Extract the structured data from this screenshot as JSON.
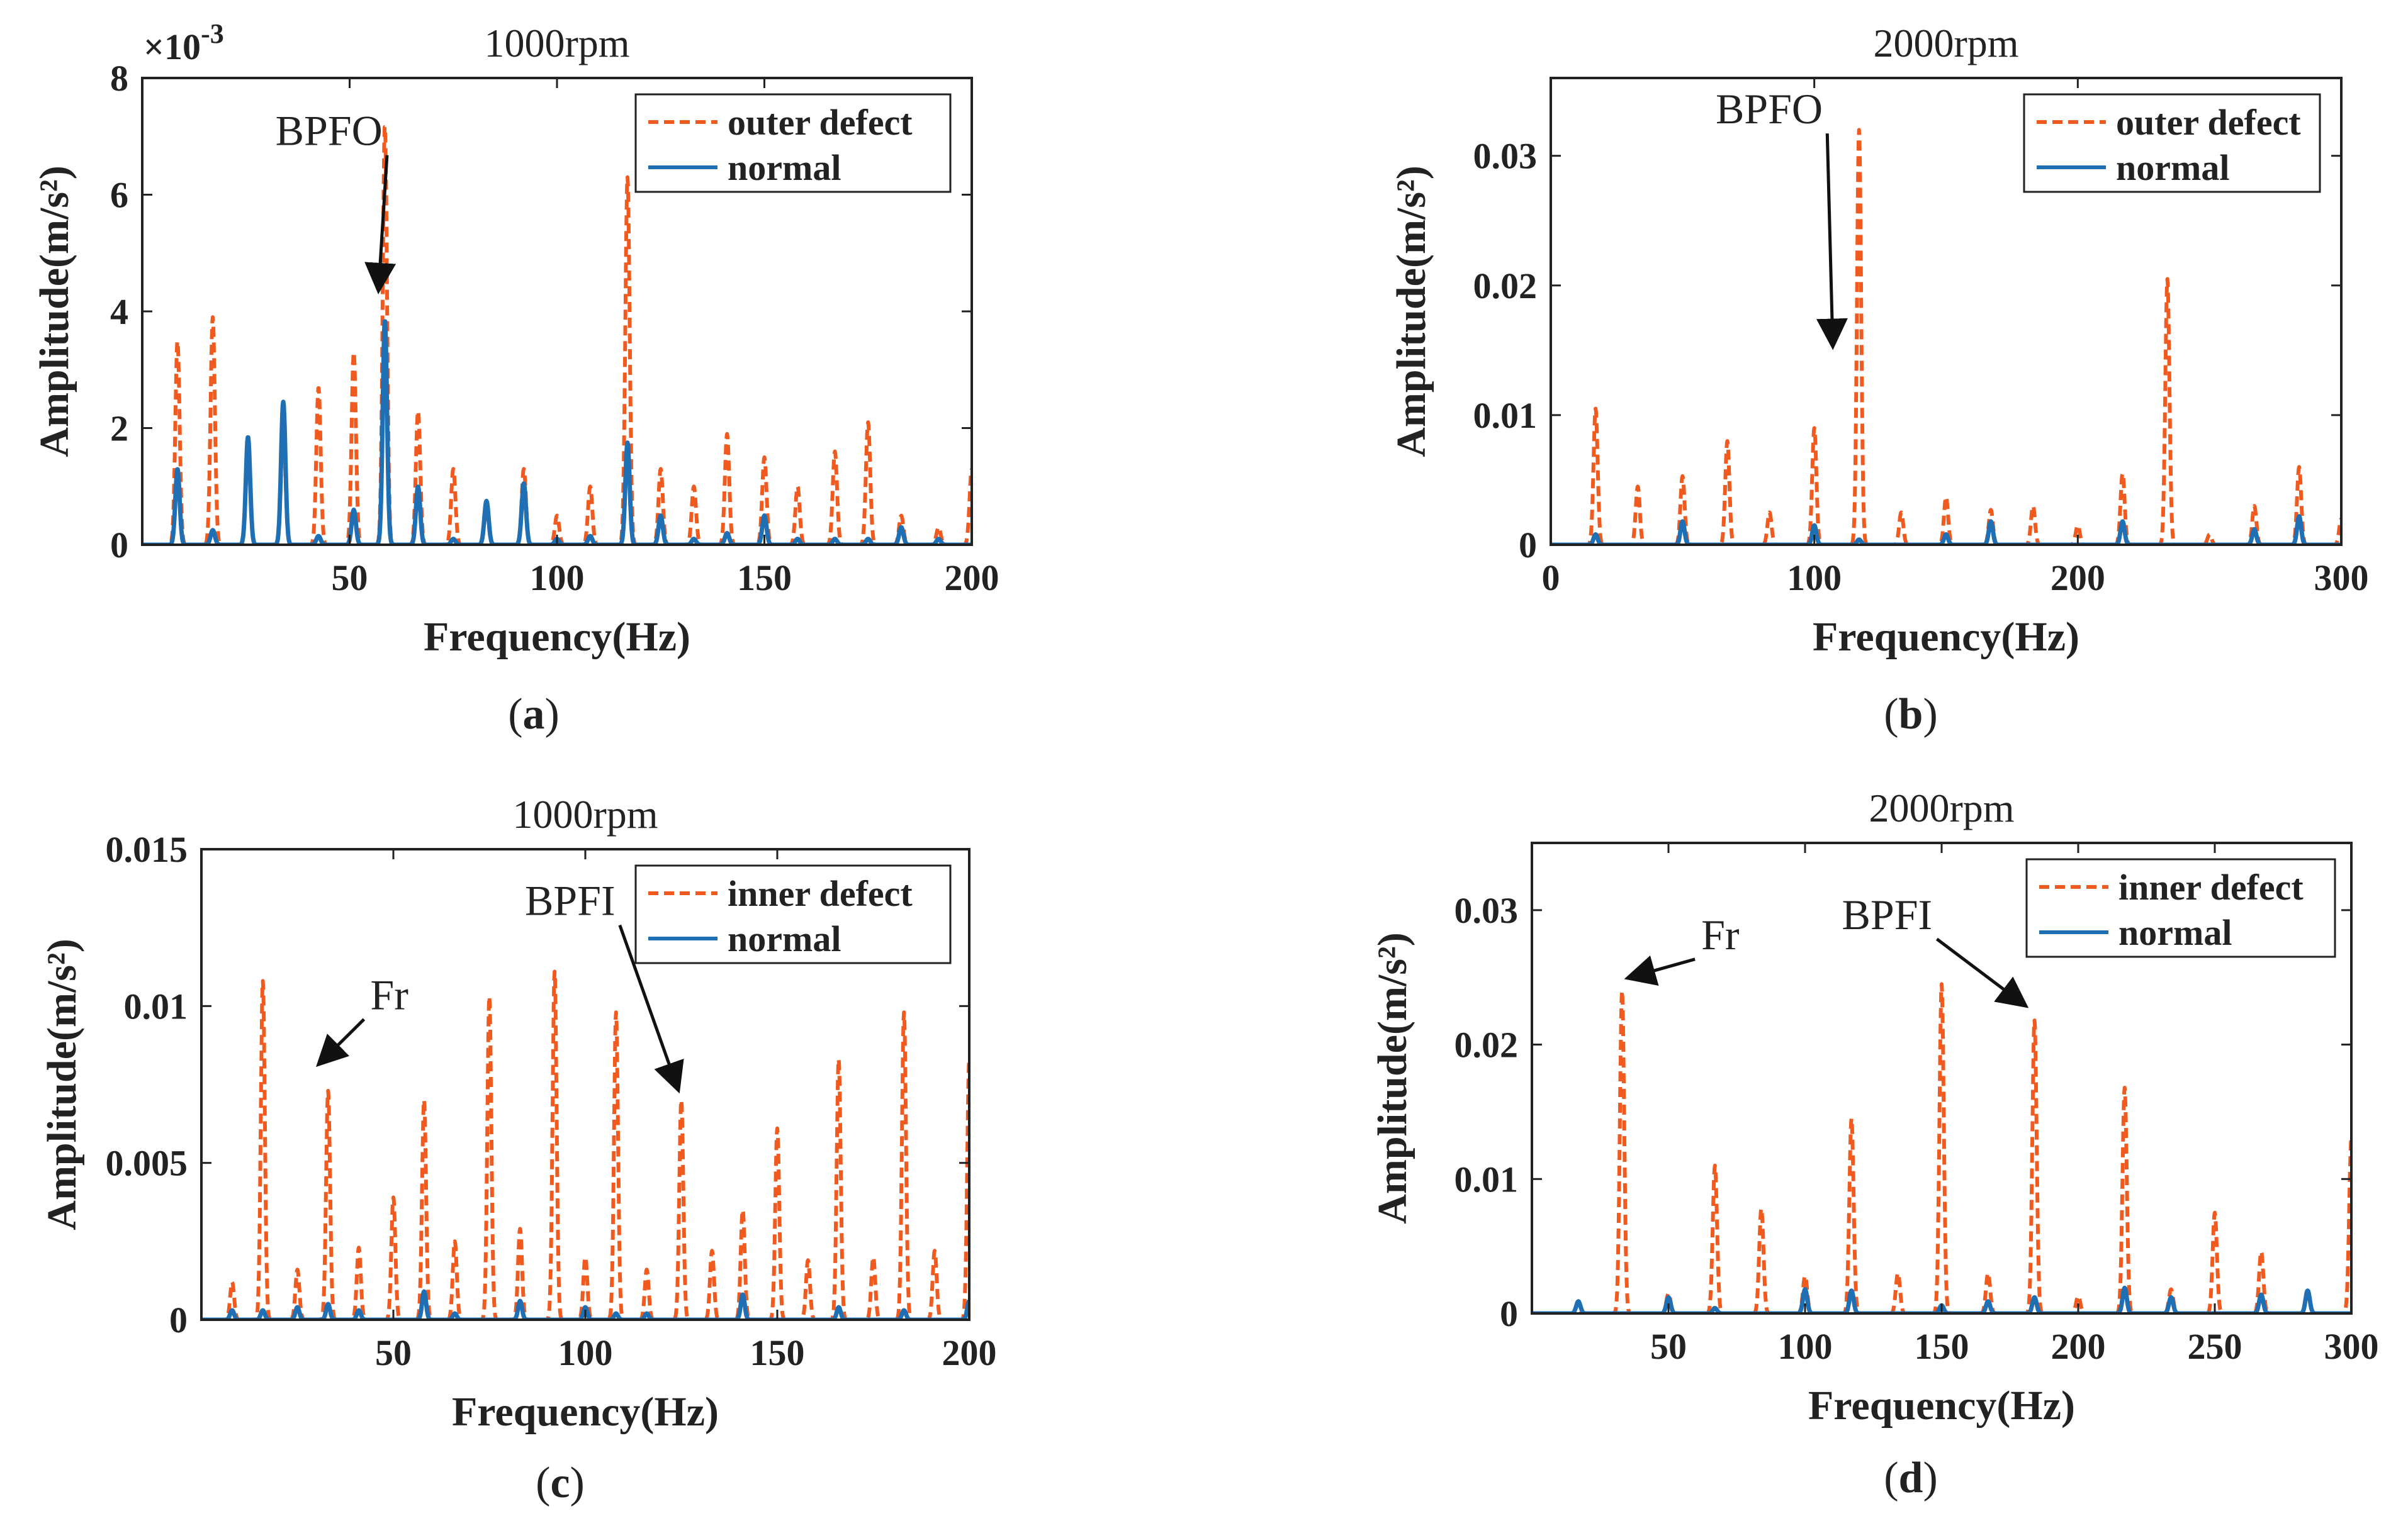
{
  "figure": {
    "colors": {
      "defect": "#f05a1e",
      "normal": "#1f6fb5",
      "axis": "#222222"
    }
  },
  "chart_data": [
    {
      "type": "line",
      "panel": "a",
      "caption_letter": "a",
      "title": "1000rpm",
      "xlabel": "Frequency(Hz)",
      "ylabel": "Amplitude(m/s²)",
      "y_exponent_text": "×10",
      "y_exponent_power": "-3",
      "xlim": [
        0,
        200
      ],
      "ylim": [
        0,
        8
      ],
      "xticks": [
        50,
        100,
        150,
        200
      ],
      "xtick_labels": [
        "50",
        "100",
        "150",
        "200"
      ],
      "yticks": [
        0,
        2,
        4,
        6,
        8
      ],
      "ytick_labels": [
        "0",
        "2",
        "4",
        "6",
        "8"
      ],
      "series": [
        {
          "name": "outer defect",
          "style": "dashed",
          "color": "#f05a1e",
          "peaks": [
            [
              8.5,
              3.5
            ],
            [
              17,
              3.9
            ],
            [
              25.5,
              1.7
            ],
            [
              34,
              2.0
            ],
            [
              42.5,
              2.7
            ],
            [
              51,
              3.3
            ],
            [
              58.5,
              7.2
            ],
            [
              66.5,
              2.3
            ],
            [
              75,
              1.3
            ],
            [
              83,
              0.6
            ],
            [
              92,
              1.3
            ],
            [
              100,
              0.5
            ],
            [
              108,
              1.0
            ],
            [
              117,
              6.3
            ],
            [
              125,
              1.3
            ],
            [
              133,
              1.0
            ],
            [
              141,
              1.9
            ],
            [
              150,
              1.5
            ],
            [
              158,
              1.0
            ],
            [
              167,
              1.6
            ],
            [
              175,
              2.1
            ],
            [
              183,
              0.5
            ],
            [
              192,
              0.3
            ],
            [
              200,
              1.3
            ]
          ]
        },
        {
          "name": "normal",
          "style": "solid",
          "color": "#1f6fb5",
          "peaks": [
            [
              8.5,
              1.3
            ],
            [
              17,
              0.25
            ],
            [
              25.5,
              1.85
            ],
            [
              34,
              2.45
            ],
            [
              42.5,
              0.15
            ],
            [
              51,
              0.6
            ],
            [
              58.5,
              3.85
            ],
            [
              66.5,
              1.0
            ],
            [
              75,
              0.1
            ],
            [
              83,
              0.75
            ],
            [
              92,
              1.05
            ],
            [
              100,
              0.1
            ],
            [
              108,
              0.15
            ],
            [
              117,
              1.75
            ],
            [
              125,
              0.5
            ],
            [
              133,
              0.1
            ],
            [
              141,
              0.2
            ],
            [
              150,
              0.5
            ],
            [
              158,
              0.1
            ],
            [
              167,
              0.1
            ],
            [
              175,
              0.1
            ],
            [
              183,
              0.3
            ],
            [
              192,
              0.1
            ]
          ]
        }
      ],
      "legend": {
        "position": "top-right",
        "entries": [
          "outer defect",
          "normal"
        ]
      },
      "annotations": [
        {
          "text": "BPFO",
          "x": 47,
          "y": 6.85,
          "arrow_to_x": 57,
          "arrow_to_y": 4.4
        }
      ]
    },
    {
      "type": "line",
      "panel": "b",
      "caption_letter": "b",
      "title": "2000rpm",
      "xlabel": "Frequency(Hz)",
      "ylabel": "Amplitude(m/s²)",
      "xlim": [
        0,
        300
      ],
      "ylim": [
        0,
        0.036
      ],
      "xticks": [
        0,
        100,
        200,
        300
      ],
      "xtick_labels": [
        "0",
        "100",
        "200",
        "300"
      ],
      "yticks": [
        0,
        0.01,
        0.02,
        0.03
      ],
      "ytick_labels": [
        "0",
        "0.01",
        "0.02",
        "0.03"
      ],
      "series": [
        {
          "name": "outer defect",
          "style": "dashed",
          "color": "#f05a1e",
          "peaks": [
            [
              17,
              0.0105
            ],
            [
              33,
              0.0045
            ],
            [
              50,
              0.0053
            ],
            [
              67,
              0.008
            ],
            [
              83,
              0.0025
            ],
            [
              100,
              0.009
            ],
            [
              117,
              0.032
            ],
            [
              133,
              0.0025
            ],
            [
              150,
              0.0037
            ],
            [
              167,
              0.0027
            ],
            [
              183,
              0.003
            ],
            [
              200,
              0.0015
            ],
            [
              217,
              0.0055
            ],
            [
              234,
              0.0205
            ],
            [
              250,
              0.0008
            ],
            [
              267,
              0.003
            ],
            [
              284,
              0.006
            ],
            [
              300,
              0.002
            ]
          ]
        },
        {
          "name": "normal",
          "style": "solid",
          "color": "#1f6fb5",
          "peaks": [
            [
              17,
              0.0008
            ],
            [
              50,
              0.0018
            ],
            [
              100,
              0.0015
            ],
            [
              117,
              0.0004
            ],
            [
              150,
              0.0008
            ],
            [
              167,
              0.0018
            ],
            [
              217,
              0.0018
            ],
            [
              267,
              0.0012
            ],
            [
              284,
              0.0022
            ]
          ]
        }
      ],
      "legend": {
        "position": "top-right",
        "entries": [
          "outer defect",
          "normal"
        ]
      },
      "annotations": [
        {
          "text": "BPFO",
          "x": 86,
          "y": 0.0325,
          "arrow_to_x": 107,
          "arrow_to_y": 0.0155
        }
      ]
    },
    {
      "type": "line",
      "panel": "c",
      "caption_letter": "c",
      "title": "1000rpm",
      "xlabel": "Frequency(Hz)",
      "ylabel": "Amplitude(m/s²)",
      "xlim": [
        0,
        200
      ],
      "ylim": [
        0,
        0.015
      ],
      "xticks": [
        50,
        100,
        150,
        200
      ],
      "xtick_labels": [
        "50",
        "100",
        "150",
        "200"
      ],
      "yticks": [
        0,
        0.005,
        0.01,
        0.015
      ],
      "ytick_labels": [
        "0",
        "0.005",
        "0.01",
        "0.015"
      ],
      "series": [
        {
          "name": "inner defect",
          "style": "dashed",
          "color": "#f05a1e",
          "peaks": [
            [
              8,
              0.0012
            ],
            [
              16,
              0.0108
            ],
            [
              25,
              0.0016
            ],
            [
              33,
              0.0073
            ],
            [
              41,
              0.0023
            ],
            [
              50,
              0.0039
            ],
            [
              58,
              0.007
            ],
            [
              66,
              0.0025
            ],
            [
              75,
              0.0103
            ],
            [
              83,
              0.0029
            ],
            [
              92,
              0.0111
            ],
            [
              100,
              0.002
            ],
            [
              108,
              0.0098
            ],
            [
              116,
              0.0016
            ],
            [
              125,
              0.007
            ],
            [
              133,
              0.0022
            ],
            [
              141,
              0.0035
            ],
            [
              150,
              0.0061
            ],
            [
              158,
              0.0019
            ],
            [
              166,
              0.0083
            ],
            [
              175,
              0.002
            ],
            [
              183,
              0.0098
            ],
            [
              191,
              0.0022
            ],
            [
              200,
              0.0083
            ]
          ]
        },
        {
          "name": "normal",
          "style": "solid",
          "color": "#1f6fb5",
          "peaks": [
            [
              8,
              0.0003
            ],
            [
              16,
              0.0003
            ],
            [
              25,
              0.0004
            ],
            [
              33,
              0.0005
            ],
            [
              41,
              0.0003
            ],
            [
              58,
              0.0009
            ],
            [
              66,
              0.0002
            ],
            [
              83,
              0.0006
            ],
            [
              100,
              0.0004
            ],
            [
              108,
              0.0002
            ],
            [
              116,
              0.0002
            ],
            [
              141,
              0.0008
            ],
            [
              166,
              0.0004
            ],
            [
              183,
              0.0003
            ],
            [
              200,
              0.0006
            ]
          ]
        }
      ],
      "legend": {
        "position": "top-right",
        "entries": [
          "inner defect",
          "normal"
        ]
      },
      "annotations": [
        {
          "text": "Fr",
          "x": 44,
          "y": 0.0099,
          "arrow_to_x": 31,
          "arrow_to_y": 0.0082
        },
        {
          "text": "BPFI",
          "x": 96,
          "y": 0.0129,
          "arrow_to_x": 124,
          "arrow_to_y": 0.0074
        }
      ]
    },
    {
      "type": "line",
      "panel": "d",
      "caption_letter": "d",
      "title": "2000rpm",
      "xlabel": "Frequency(Hz)",
      "ylabel": "Amplitude(m/s²)",
      "xlim": [
        0,
        300
      ],
      "ylim": [
        0,
        0.035
      ],
      "xticks": [
        50,
        100,
        150,
        200,
        250,
        300
      ],
      "xtick_labels": [
        "50",
        "100",
        "150",
        "200",
        "250",
        "300"
      ],
      "yticks": [
        0,
        0.01,
        0.02,
        0.03
      ],
      "ytick_labels": [
        "0",
        "0.01",
        "0.02",
        "0.03"
      ],
      "series": [
        {
          "name": "inner defect",
          "style": "dashed",
          "color": "#f05a1e",
          "peaks": [
            [
              33,
              0.024
            ],
            [
              50,
              0.0015
            ],
            [
              67,
              0.011
            ],
            [
              84,
              0.0078
            ],
            [
              100,
              0.0028
            ],
            [
              117,
              0.0145
            ],
            [
              134,
              0.003
            ],
            [
              150,
              0.0245
            ],
            [
              167,
              0.003
            ],
            [
              184,
              0.0218
            ],
            [
              200,
              0.0013
            ],
            [
              217,
              0.0168
            ],
            [
              234,
              0.0018
            ],
            [
              250,
              0.0075
            ],
            [
              267,
              0.0046
            ],
            [
              284,
              0.0015
            ],
            [
              300,
              0.013
            ]
          ]
        },
        {
          "name": "normal",
          "style": "solid",
          "color": "#1f6fb5",
          "peaks": [
            [
              17,
              0.0009
            ],
            [
              50,
              0.0012
            ],
            [
              67,
              0.0004
            ],
            [
              100,
              0.0018
            ],
            [
              117,
              0.0017
            ],
            [
              150,
              0.0006
            ],
            [
              167,
              0.0009
            ],
            [
              184,
              0.0012
            ],
            [
              217,
              0.0019
            ],
            [
              234,
              0.0012
            ],
            [
              267,
              0.0014
            ],
            [
              284,
              0.0017
            ]
          ]
        }
      ],
      "legend": {
        "position": "top-right",
        "entries": [
          "inner defect",
          "normal"
        ]
      },
      "annotations": [
        {
          "text": "Fr",
          "x": 62,
          "y": 0.0271,
          "arrow_to_x": 36,
          "arrow_to_y": 0.025
        },
        {
          "text": "BPFI",
          "x": 130,
          "y": 0.0286,
          "arrow_to_x": 180,
          "arrow_to_y": 0.023
        }
      ]
    }
  ]
}
